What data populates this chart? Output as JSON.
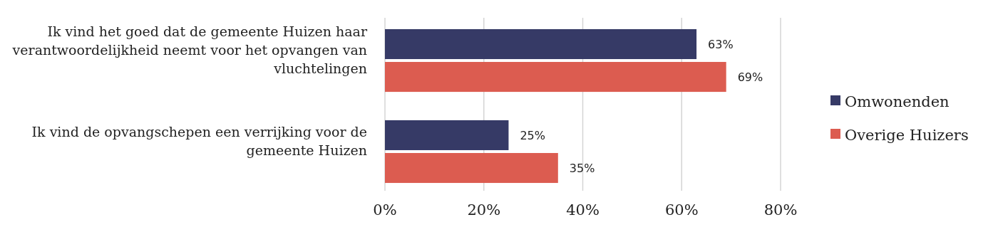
{
  "chart_data": {
    "type": "bar",
    "orientation": "horizontal",
    "categories": [
      "Ik vind het goed dat de gemeente Huizen haar verantwoordelijkheid neemt voor het opvangen van vluchtelingen",
      "Ik vind de opvangschepen een verrijking voor de gemeente Huizen"
    ],
    "series": [
      {
        "name": "Omwonenden",
        "color": "#363a66",
        "values": [
          63,
          25
        ],
        "value_labels": [
          "63%",
          "25%"
        ]
      },
      {
        "name": "Overige Huizers",
        "color": "#dc5c50",
        "values": [
          69,
          35
        ],
        "value_labels": [
          "69%",
          "35%"
        ]
      }
    ],
    "xlim": [
      0,
      80
    ],
    "xticks": [
      {
        "value": 0,
        "label": "0%"
      },
      {
        "value": 20,
        "label": "20%"
      },
      {
        "value": 40,
        "label": "40%"
      },
      {
        "value": 60,
        "label": "60%"
      },
      {
        "value": 80,
        "label": "80%"
      }
    ],
    "grid": "x",
    "legend": "right"
  }
}
